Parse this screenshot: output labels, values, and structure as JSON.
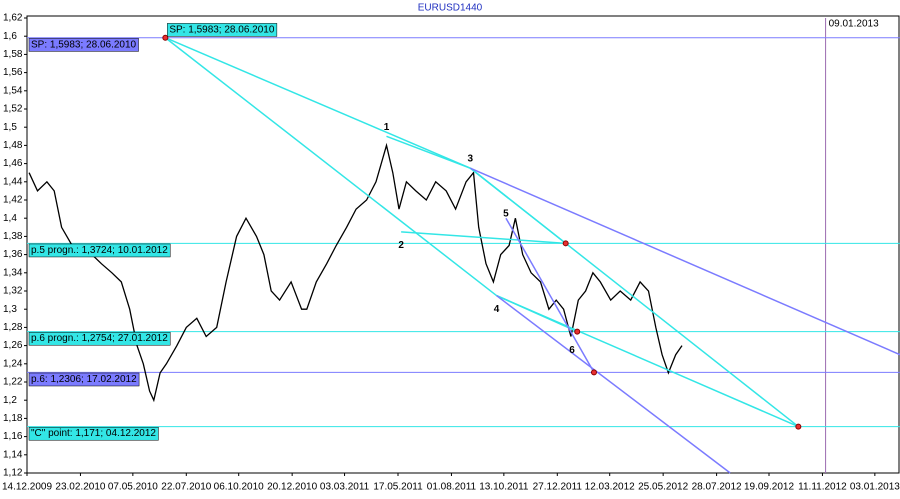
{
  "chart_data": {
    "type": "price-line",
    "title": "EURUSD1440",
    "x": [
      2,
      10,
      19,
      26,
      33,
      43,
      52,
      62,
      71,
      81,
      90,
      98,
      105,
      111,
      117,
      121,
      127,
      133,
      143,
      152,
      162,
      171,
      181,
      190,
      200,
      209,
      219,
      226,
      233,
      241,
      252,
      262,
      267,
      276,
      286,
      295,
      305,
      314,
      324,
      333,
      343,
      349,
      355,
      362,
      371,
      381,
      390,
      400,
      409,
      419,
      426,
      431,
      438,
      445,
      452,
      460,
      466,
      473,
      481,
      490,
      498,
      505,
      512,
      519,
      526,
      533,
      540,
      547,
      557,
      566,
      576,
      585,
      593,
      600,
      606,
      612,
      619,
      625
    ],
    "values": [
      1.45,
      1.43,
      1.44,
      1.43,
      1.39,
      1.37,
      1.36,
      1.36,
      1.35,
      1.34,
      1.33,
      1.3,
      1.26,
      1.24,
      1.21,
      1.2,
      1.23,
      1.24,
      1.26,
      1.28,
      1.29,
      1.27,
      1.28,
      1.33,
      1.38,
      1.4,
      1.38,
      1.36,
      1.32,
      1.31,
      1.33,
      1.3,
      1.3,
      1.33,
      1.35,
      1.37,
      1.39,
      1.41,
      1.42,
      1.44,
      1.48,
      1.45,
      1.41,
      1.44,
      1.43,
      1.42,
      1.44,
      1.43,
      1.41,
      1.44,
      1.45,
      1.39,
      1.35,
      1.33,
      1.36,
      1.37,
      1.4,
      1.36,
      1.34,
      1.33,
      1.3,
      1.31,
      1.3,
      1.27,
      1.31,
      1.32,
      1.34,
      1.33,
      1.31,
      1.32,
      1.31,
      1.33,
      1.32,
      1.28,
      1.25,
      1.23,
      1.25,
      1.26
    ],
    "color": "#000000",
    "xlim": [
      0,
      833
    ],
    "ylim": [
      1.12,
      1.62
    ],
    "xticks": [
      {
        "value": 0,
        "label": "14.12.2009"
      },
      {
        "value": 51,
        "label": "23.02.2010"
      },
      {
        "value": 101,
        "label": "07.05.2010"
      },
      {
        "value": 152,
        "label": "22.07.2010"
      },
      {
        "value": 202,
        "label": "06.10.2010"
      },
      {
        "value": 253,
        "label": "20.12.2010"
      },
      {
        "value": 303,
        "label": "03.03.2011"
      },
      {
        "value": 354,
        "label": "17.05.2011"
      },
      {
        "value": 405,
        "label": "01.08.2011"
      },
      {
        "value": 455,
        "label": "13.10.2011"
      },
      {
        "value": 506,
        "label": "27.12.2011"
      },
      {
        "value": 556,
        "label": "12.03.2012"
      },
      {
        "value": 607,
        "label": "25.05.2012"
      },
      {
        "value": 658,
        "label": "28.07.2012"
      },
      {
        "value": 708,
        "label": "19.09.2012"
      },
      {
        "value": 759,
        "label": "11.11.2012"
      },
      {
        "value": 809,
        "label": "03.01.2013"
      }
    ],
    "yticks": [
      {
        "value": 1.12,
        "label": "1,12"
      },
      {
        "value": 1.14,
        "label": "1,14"
      },
      {
        "value": 1.16,
        "label": "1,16"
      },
      {
        "value": 1.18,
        "label": "1,18"
      },
      {
        "value": 1.2,
        "label": "1,2"
      },
      {
        "value": 1.22,
        "label": "1,22"
      },
      {
        "value": 1.24,
        "label": "1,24"
      },
      {
        "value": 1.26,
        "label": "1,26"
      },
      {
        "value": 1.28,
        "label": "1,28"
      },
      {
        "value": 1.3,
        "label": "1,3"
      },
      {
        "value": 1.32,
        "label": "1,32"
      },
      {
        "value": 1.34,
        "label": "1,34"
      },
      {
        "value": 1.36,
        "label": "1,36"
      },
      {
        "value": 1.38,
        "label": "1,38"
      },
      {
        "value": 1.4,
        "label": "1,4"
      },
      {
        "value": 1.42,
        "label": "1,42"
      },
      {
        "value": 1.44,
        "label": "1,44"
      },
      {
        "value": 1.46,
        "label": "1,46"
      },
      {
        "value": 1.48,
        "label": "1,48"
      },
      {
        "value": 1.5,
        "label": "1,5"
      },
      {
        "value": 1.52,
        "label": "1,52"
      },
      {
        "value": 1.54,
        "label": "1,54"
      },
      {
        "value": 1.56,
        "label": "1,56"
      },
      {
        "value": 1.58,
        "label": "1,58"
      },
      {
        "value": 1.6,
        "label": "1,6"
      },
      {
        "value": 1.62,
        "label": "1,62"
      }
    ],
    "hlines": [
      {
        "value": 1.5983,
        "label": "SP: 1,5983; 28.06.2010",
        "color": "#7b7bff"
      },
      {
        "value": 1.3724,
        "label": "p.5 progn.: 1,3724; 10.01.2012",
        "color": "#33e6e6"
      },
      {
        "value": 1.2754,
        "label": "p.6 progn.: 1,2754; 27.01.2012",
        "color": "#33e6e6"
      },
      {
        "value": 1.2306,
        "label": "p.6: 1,2306; 17.02.2012",
        "color": "#7b7bff"
      },
      {
        "value": 1.171,
        "label": "\"C\" point: 1,171; 04.12.2012",
        "color": "#33e6e6"
      }
    ],
    "vline": {
      "value": 762,
      "label": "09.01.2013",
      "color": "#9b6bb0"
    },
    "sp_label": {
      "x": 132,
      "y": 1.5983,
      "label": "SP: 1,5983; 28.06.2010"
    },
    "segments": [
      {
        "color": "#33e6e6",
        "x": [
          132,
          423
        ],
        "y": [
          1.5983,
          1.455
        ]
      },
      {
        "color": "#33e6e6",
        "x": [
          132,
          448
        ],
        "y": [
          1.5983,
          1.315
        ]
      },
      {
        "color": "#33e6e6",
        "x": [
          423,
          736
        ],
        "y": [
          1.455,
          1.171
        ]
      },
      {
        "color": "#33e6e6",
        "x": [
          448,
          736
        ],
        "y": [
          1.315,
          1.171
        ]
      },
      {
        "color": "#33e6e6",
        "x": [
          343,
          423
        ],
        "y": [
          1.49,
          1.455
        ]
      },
      {
        "color": "#33e6e6",
        "x": [
          357,
          514
        ],
        "y": [
          1.385,
          1.3724
        ]
      },
      {
        "color": "#33e6e6",
        "x": [
          423,
          514
        ],
        "y": [
          1.455,
          1.3724
        ]
      },
      {
        "color": "#33e6e6",
        "x": [
          448,
          525
        ],
        "y": [
          1.315,
          1.2754
        ]
      },
      {
        "color": "#7b7bff",
        "x": [
          423,
          833
        ],
        "y": [
          1.455,
          1.25
        ]
      },
      {
        "color": "#7b7bff",
        "x": [
          448,
          671
        ],
        "y": [
          1.315,
          1.12
        ]
      },
      {
        "color": "#7b7bff",
        "x": [
          457,
          541
        ],
        "y": [
          1.4,
          1.2306
        ]
      }
    ],
    "dots": {
      "color": "#e83030",
      "x": [
        132,
        514,
        525,
        541,
        736
      ],
      "y": [
        1.5983,
        1.3724,
        1.2754,
        1.2306,
        1.171
      ]
    },
    "points": [
      {
        "label": "1",
        "x": 343,
        "y": 1.5
      },
      {
        "label": "2",
        "x": 357,
        "y": 1.37
      },
      {
        "label": "3",
        "x": 423,
        "y": 1.465
      },
      {
        "label": "4",
        "x": 448,
        "y": 1.3
      },
      {
        "label": "5",
        "x": 457,
        "y": 1.405
      },
      {
        "label": "6",
        "x": 520,
        "y": 1.255
      }
    ]
  }
}
